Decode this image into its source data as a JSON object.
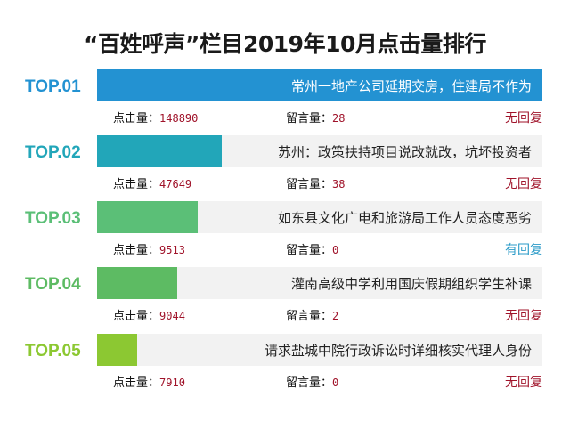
{
  "title": "“百姓呼声”栏目2019年10月点击量排行",
  "labels": {
    "clicks": "点击量：",
    "messages": "留言量："
  },
  "rows": [
    {
      "rank": "TOP.01",
      "topic": "常州一地产公司延期交房，住建局不作为",
      "clicks": "148890",
      "messages": "28",
      "reply": "无回复",
      "color": "#2392d2",
      "reply_color": "#a0132a",
      "fill_pct": 100
    },
    {
      "rank": "TOP.02",
      "topic": "苏州：政策扶持项目说改就改，坑坏投资者",
      "clicks": "47649",
      "messages": "38",
      "reply": "无回复",
      "color": "#22a6b9",
      "reply_color": "#a0132a",
      "fill_pct": 28
    },
    {
      "rank": "TOP.03",
      "topic": "如东县文化广电和旅游局工作人员态度恶劣",
      "clicks": "9513",
      "messages": "0",
      "reply": "有回复",
      "color": "#5bbf77",
      "reply_color": "#2b9bc8",
      "fill_pct": 22.6
    },
    {
      "rank": "TOP.04",
      "topic": "灌南高级中学利用国庆假期组织学生补课",
      "clicks": "9044",
      "messages": "2",
      "reply": "无回复",
      "color": "#5dbb63",
      "reply_color": "#a0132a",
      "fill_pct": 18
    },
    {
      "rank": "TOP.05",
      "topic": "请求盐城中院行政诉讼时详细核实代理人身份",
      "clicks": "7910",
      "messages": "0",
      "reply": "无回复",
      "color": "#8cc832",
      "reply_color": "#a0132a",
      "fill_pct": 9
    }
  ],
  "chart_data": {
    "type": "bar",
    "orientation": "horizontal",
    "title": "“百姓呼声”栏目2019年10月点击量排行",
    "categories": [
      "常州一地产公司延期交房，住建局不作为",
      "苏州：政策扶持项目说改就改，坑坏投资者",
      "如东县文化广电和旅游局工作人员态度恶劣",
      "灌南高级中学利用国庆假期组织学生补课",
      "请求盐城中院行政诉讼时详细核实代理人身份"
    ],
    "series": [
      {
        "name": "点击量",
        "values": [
          148890,
          47649,
          9513,
          9044,
          7910
        ]
      },
      {
        "name": "留言量",
        "values": [
          28,
          38,
          0,
          2,
          0
        ]
      }
    ],
    "reply_status": [
      "无回复",
      "无回复",
      "有回复",
      "无回复",
      "无回复"
    ],
    "rank_labels": [
      "TOP.01",
      "TOP.02",
      "TOP.03",
      "TOP.04",
      "TOP.05"
    ]
  }
}
